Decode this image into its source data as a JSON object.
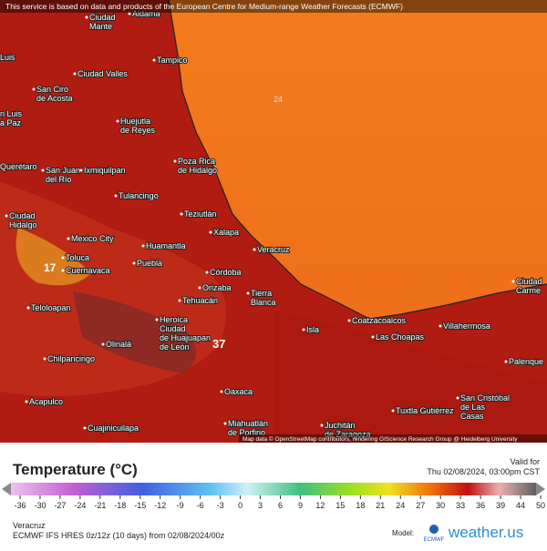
{
  "banner": "This service is based on data and products of the European Centre for Medium-range Weather Forecasts (ECMWF)",
  "cities": [
    [
      "Aldama"
    ],
    [
      "Ciudad",
      "Mante"
    ],
    [
      "Luis"
    ],
    [
      "Tampico"
    ],
    [
      "Ciudad Valles"
    ],
    [
      "San Ciro",
      "de Acosta"
    ],
    [
      "Huejutla",
      "de Reyes"
    ],
    [
      "n Luis",
      "a Paz"
    ],
    [
      "Querétaro"
    ],
    [
      "San Juan",
      "del Río"
    ],
    [
      "Ixmiquilpan"
    ],
    [
      "Poza Rica",
      "de Hidalgo"
    ],
    [
      "Tulancingo"
    ],
    [
      "Teziutlán"
    ],
    [
      "Ciudad",
      "Hidalgo"
    ],
    [
      "Xalapa"
    ],
    [
      "Mexico City"
    ],
    [
      "Veracruz"
    ],
    [
      "Huamantla"
    ],
    [
      "Toluca"
    ],
    [
      "Cuernavaca"
    ],
    [
      "Puebla"
    ],
    [
      "Córdoba"
    ],
    [
      "Orizaba"
    ],
    [
      "Tierra",
      "Blanca"
    ],
    [
      "Teloloapan"
    ],
    [
      "Tehuacán"
    ],
    [
      "Heroica",
      "Ciudad",
      "de Huajuapan",
      "de León"
    ],
    [
      "Coatzacoalcos"
    ],
    [
      "Villahermosa"
    ],
    [
      "Isla"
    ],
    [
      "Las Choapas"
    ],
    [
      "Olinalá"
    ],
    [
      "Chilpancingo"
    ],
    [
      "Palenque"
    ],
    [
      "Ciudad",
      "Carme"
    ],
    [
      "Oaxaca"
    ],
    [
      "Acapulco"
    ],
    [
      "San Cristóbal",
      "de Las",
      "Casas"
    ],
    [
      "Tuxtla Gutiérrez"
    ],
    [
      "Cuajinicuilapa"
    ],
    [
      "Miahuatlán",
      "de Porfirio"
    ],
    [
      "Juchitán",
      "de Zaragoza"
    ]
  ],
  "contour_labels": [
    "24",
    "17",
    "37"
  ],
  "attribution": "Map data © OpenStreetMap contributors, rendering GIScience Research Group @ Heidelberg University",
  "legend": {
    "title": "Temperature (°C)",
    "valid_label": "Valid for",
    "valid_time": "Thu 02/08/2024, 03:00pm CST",
    "ticks": [
      -36,
      -30,
      -27,
      -24,
      -21,
      -18,
      -15,
      -12,
      -9,
      -6,
      -3,
      0,
      3,
      6,
      9,
      12,
      15,
      18,
      21,
      24,
      27,
      30,
      33,
      36,
      39,
      44,
      50
    ]
  },
  "footer": {
    "location": "Veracruz",
    "model_run": "ECMWF IFS HRES 0z/12z (10 days) from 02/08/2024/00z",
    "model_label": "Model:",
    "model": "ECMWF",
    "brand": "weather.us"
  }
}
